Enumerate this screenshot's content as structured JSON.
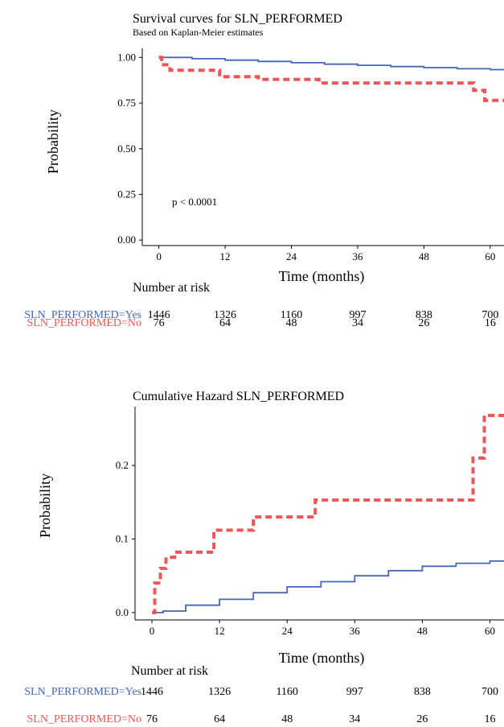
{
  "colors": {
    "yes": "#4466bb",
    "no": "#ee5555",
    "axis": "#000000"
  },
  "chart_data": [
    {
      "type": "line",
      "title": "Survival curves for SLN_PERFORMED",
      "subtitle": "Based on Kaplan-Meier estimates",
      "xlabel": "Time (months)",
      "ylabel": "Probability",
      "xlim": [
        -3,
        62.5
      ],
      "ylim": [
        -0.03,
        1.05
      ],
      "xticks": [
        0,
        12,
        24,
        36,
        48,
        60
      ],
      "yticks": [
        "0.00",
        "0.25",
        "0.50",
        "0.75",
        "1.00"
      ],
      "grid": false,
      "annotation": "p < 0.0001",
      "series": [
        {
          "key": "yes",
          "style": "solid",
          "step": true,
          "x": [
            0,
            6,
            12,
            18,
            24,
            30,
            36,
            42,
            48,
            54,
            60,
            62.5
          ],
          "y": [
            1.0,
            0.993,
            0.985,
            0.978,
            0.971,
            0.963,
            0.957,
            0.95,
            0.944,
            0.938,
            0.933,
            0.932
          ]
        },
        {
          "key": "no",
          "style": "dashed",
          "step": true,
          "x": [
            0,
            0.5,
            2,
            11,
            18,
            29,
            57,
            59,
            62.5
          ],
          "y": [
            1.0,
            0.96,
            0.93,
            0.895,
            0.88,
            0.86,
            0.82,
            0.765,
            0.765
          ]
        }
      ]
    },
    {
      "type": "line",
      "title": "Cumulative Hazard SLN_PERFORMED",
      "xlabel": "Time (months)",
      "ylabel": "Probability",
      "xlim": [
        -3,
        62.5
      ],
      "ylim": [
        -0.01,
        0.28
      ],
      "xticks": [
        0,
        12,
        24,
        36,
        48,
        60
      ],
      "yticks": [
        "0.0",
        "0.1",
        "0.2"
      ],
      "grid": false,
      "series": [
        {
          "key": "yes",
          "style": "solid",
          "step": true,
          "x": [
            0,
            2,
            6,
            12,
            18,
            24,
            30,
            36,
            42,
            48,
            54,
            60,
            62.5
          ],
          "y": [
            0.0,
            0.002,
            0.01,
            0.018,
            0.027,
            0.035,
            0.042,
            0.05,
            0.057,
            0.063,
            0.067,
            0.07,
            0.07
          ]
        },
        {
          "key": "no",
          "style": "dashed",
          "step": true,
          "x": [
            0,
            0.5,
            1.5,
            2.5,
            4,
            11,
            18,
            29,
            57,
            59,
            62.5
          ],
          "y": [
            0.0,
            0.04,
            0.06,
            0.075,
            0.082,
            0.112,
            0.13,
            0.153,
            0.21,
            0.268,
            0.268
          ]
        }
      ]
    }
  ],
  "risk_tables": [
    {
      "title": "Number at risk",
      "rows": [
        {
          "key": "yes",
          "label": "SLN_PERFORMED=Yes",
          "values": [
            "1446",
            "1326",
            "1160",
            "997",
            "838",
            "700"
          ]
        },
        {
          "key": "no",
          "label": "SLN_PERFORMED=No",
          "values": [
            "76",
            "64",
            "48",
            "34",
            "26",
            "16"
          ]
        }
      ]
    },
    {
      "title": "Number at risk",
      "rows": [
        {
          "key": "yes",
          "label": "SLN_PERFORMED=Yes",
          "values": [
            "1446",
            "1326",
            "1160",
            "997",
            "838",
            "700"
          ]
        },
        {
          "key": "no",
          "label": "SLN_PERFORMED=No",
          "values": [
            "76",
            "64",
            "48",
            "34",
            "26",
            "16"
          ]
        }
      ]
    }
  ]
}
